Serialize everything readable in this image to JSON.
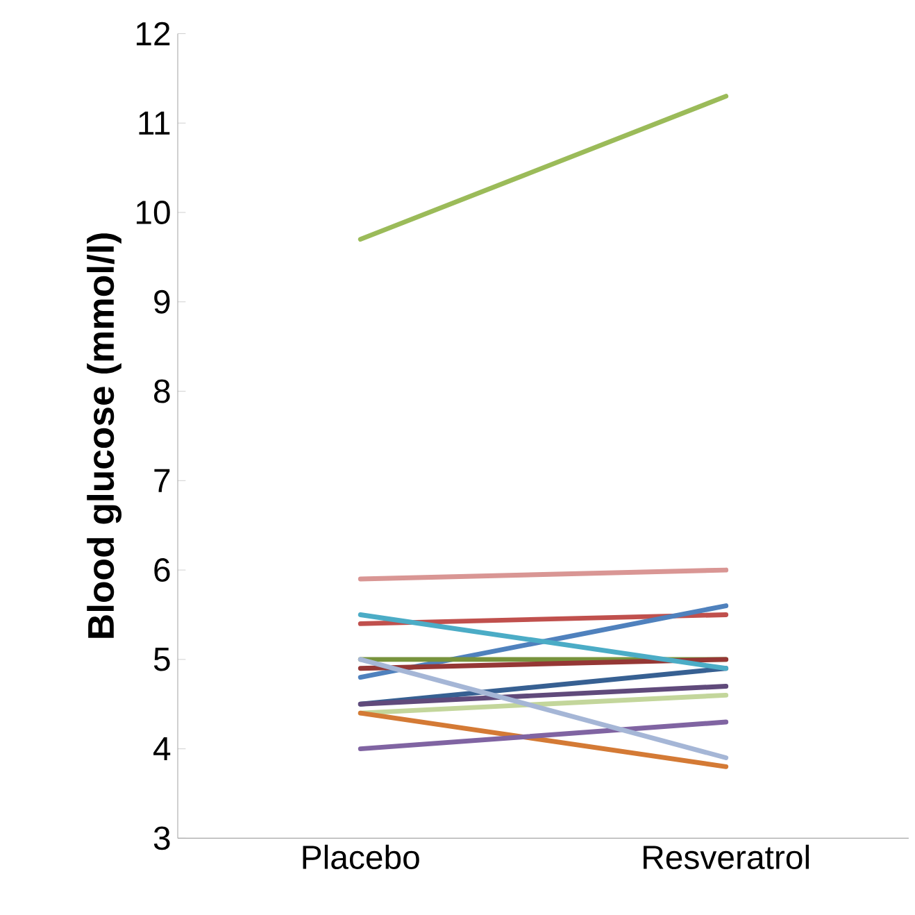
{
  "chart_data": {
    "type": "line",
    "ylabel": "Blood glucose (mmol/l)",
    "categories": [
      "Placebo",
      "Resveratrol"
    ],
    "ylim": [
      3,
      12
    ],
    "yticks": [
      3,
      4,
      5,
      6,
      7,
      8,
      9,
      10,
      11,
      12
    ],
    "grid": false,
    "marker": "none",
    "line_style": "solid",
    "series": [
      {
        "color": "#9bbb59",
        "values": [
          9.7,
          11.3
        ]
      },
      {
        "color": "#d99694",
        "values": [
          5.9,
          6.0
        ]
      },
      {
        "color": "#c0504d",
        "values": [
          5.4,
          5.5
        ]
      },
      {
        "color": "#4f81bd",
        "values": [
          4.8,
          5.6
        ]
      },
      {
        "color": "#77933c",
        "values": [
          5.0,
          5.0
        ]
      },
      {
        "color": "#953735",
        "values": [
          4.9,
          5.0
        ]
      },
      {
        "color": "#376092",
        "values": [
          4.5,
          4.9
        ]
      },
      {
        "color": "#604a7b",
        "values": [
          4.5,
          4.7
        ]
      },
      {
        "color": "#c3d69b",
        "values": [
          4.4,
          4.6
        ]
      },
      {
        "color": "#d47a35",
        "values": [
          4.4,
          3.8
        ]
      },
      {
        "color": "#8064a2",
        "values": [
          4.0,
          4.3
        ]
      },
      {
        "color": "#4bacc6",
        "values": [
          5.5,
          4.9
        ]
      },
      {
        "color": "#a5b6d6",
        "values": [
          5.0,
          3.9
        ]
      }
    ]
  }
}
